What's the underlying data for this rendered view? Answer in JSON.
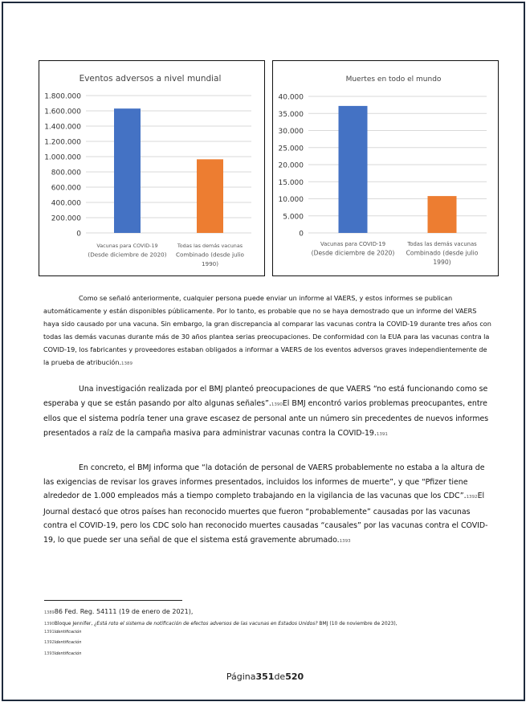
{
  "colors": {
    "bar_primary": "#4472c4",
    "bar_secondary": "#ed7d31",
    "frame": "#1e2a3c"
  },
  "chart_data": [
    {
      "type": "bar",
      "title": "Eventos adversos a nivel mundial",
      "categories": [
        [
          "Vacunas para COVID-19",
          "(Desde diciembre de 2020)"
        ],
        [
          "Todas las demás vacunas",
          "Combinado (desde julio",
          "1990)"
        ]
      ],
      "values": [
        1630000,
        965000
      ],
      "ylim": [
        0,
        1800000
      ],
      "yticks": [
        "0",
        "200.000",
        "400.000",
        "600.000",
        "800.000",
        "1.000.000",
        "1.200.000",
        "1.400.000",
        "1.600.000",
        "1.800.000"
      ],
      "grid": true,
      "colors": [
        "#4472c4",
        "#ed7d31"
      ]
    },
    {
      "type": "bar",
      "title": "Muertes en todo el mundo",
      "categories": [
        [
          "Vacunas para COVID-19",
          "(Desde diciembre de 2020)"
        ],
        [
          "Todas las demás vacunas",
          "Combinado (desde julio",
          "1990)"
        ]
      ],
      "values": [
        37200,
        10800
      ],
      "ylim": [
        0,
        40000
      ],
      "yticks": [
        "0",
        "5.000",
        "10.000",
        "15.000",
        "20.000",
        "25.000",
        "30.000",
        "35.000",
        "40.000"
      ],
      "grid": true,
      "colors": [
        "#4472c4",
        "#ed7d31"
      ]
    }
  ],
  "paragraphs": {
    "p1": "Como se señaló anteriormente, cualquier persona puede enviar un informe al VAERS, y estos informes se publican automáticamente y están disponibles públicamente. Por lo tanto, es probable que no se haya demostrado que un informe del VAERS haya sido causado por una vacuna. Sin embargo, la gran discrepancia al comparar las vacunas contra la COVID-19 durante tres años con todas las demás vacunas durante más de 30 años plantea serias preocupaciones. De conformidad con la EUA para las vacunas contra la COVID-19, los fabricantes y proveedores estaban obligados a informar a VAERS de los eventos adversos graves independientemente de la prueba de atribución.",
    "p1_ref": "1389",
    "p2_a": "Una investigación realizada por el BMJ planteó preocupaciones de que VAERS “no está funcionando como se esperaba y que se están pasando por alto algunas señales”.",
    "p2_ref1": "1390",
    "p2_b": "El BMJ encontró varios problemas preocupantes, entre ellos que el sistema podría tener una grave escasez de personal ante un número sin precedentes de nuevos informes presentados a raíz de la campaña masiva para administrar vacunas contra la COVID-19.",
    "p2_ref2": "1391",
    "p3_a": "En concreto, el BMJ informa que “la dotación de personal de VAERS probablemente no estaba a la altura de las exigencias de revisar los graves informes presentados, incluidos los informes de muerte”, y que “Pfizer tiene alrededor de 1.000 empleados más a tiempo completo trabajando en la vigilancia de las vacunas que los CDC”.",
    "p3_ref1": "1392",
    "p3_b": "El Journal destacó que otros países han reconocido muertes que fueron “probablemente” causadas por las vacunas contra el COVID-19, pero los CDC solo han reconocido muertes causadas “causales” por las vacunas contra el COVID-19, lo que puede ser una señal de que el sistema está gravemente abrumado.",
    "p3_ref2": "1393"
  },
  "footnotes": {
    "f1_num": "1389",
    "f1_text": "86 Fed. Reg. 54111 (19 de enero de 2021),",
    "f2_num": "1390",
    "f2_author": "Bloque Jennifer, ",
    "f2_title": "¿Está roto el sistema de notificación de efectos adversos de las vacunas en Estados Unidos?",
    "f2_tail": " BMJ (10 de noviembre de 2023),",
    "f3_num": "1391",
    "f3_text": "Identificación",
    "f4_num": "1392",
    "f4_text": "Identificación",
    "f5_num": "1393",
    "f5_text": "Identificación"
  },
  "page": {
    "prefix": "Página",
    "current": "351",
    "middle": "de",
    "total": "520"
  }
}
